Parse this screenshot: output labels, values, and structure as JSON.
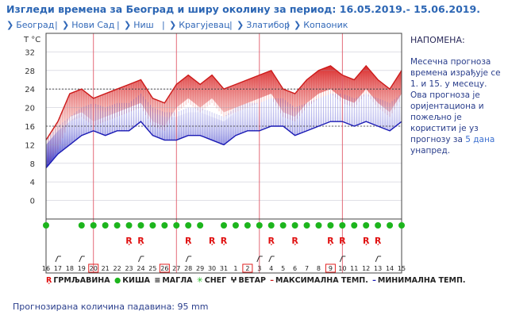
{
  "title": "Изгледи времена за Београд и ширу околину за период: 16.05.2019.- 15.06.2019.",
  "cities": [
    "Београд",
    "Нови Сад",
    "Ниш",
    "Крагујевац",
    "Златибор",
    "Копаоник"
  ],
  "note": {
    "title": "НАПОМЕНА:",
    "text_before": "Месечна прогноза времена израђује се 1. и 15. у месецу. Ова прогноза је оријентациона и пожељно је користити је уз прогнозу за ",
    "days": "5 дана",
    "text_after": " унапред."
  },
  "legend": {
    "storm": "ГРМЉАВИНА",
    "rain": "КИША",
    "fog": "МАГЛА",
    "snow": "СНЕГ",
    "wind": "ВЕТАР",
    "max": "МАКСИМАЛНА ТЕМП.",
    "min": "МИНИМАЛНА ТЕМП."
  },
  "precip": {
    "label": "Прогнозирана количина падавина:",
    "value": "95",
    "unit": "mm"
  },
  "colors": {
    "max_line": "#cc1a1a",
    "min_line": "#1a1ab4",
    "rain": "#1db51d",
    "storm": "#e01010",
    "title": "#2c66b4"
  },
  "chart_data": {
    "type": "line",
    "ylabel": "T °C",
    "ylim": [
      -4,
      36
    ],
    "yticks": [
      0,
      4,
      8,
      12,
      16,
      20,
      24,
      28,
      32
    ],
    "dashed_lines": [
      24,
      16
    ],
    "day_labels": [
      "16",
      "17",
      "18",
      "19",
      "20",
      "21",
      "22",
      "23",
      "24",
      "25",
      "26",
      "27",
      "28",
      "29",
      "30",
      "31",
      "1",
      "2",
      "3",
      "4",
      "5",
      "6",
      "7",
      "8",
      "9",
      "10",
      "11",
      "12",
      "13",
      "14",
      "15"
    ],
    "boxed_days": [
      4,
      10,
      17,
      24
    ],
    "week_lines": [
      4,
      11,
      18,
      25
    ],
    "series": [
      {
        "values": [
          13,
          17,
          23,
          24,
          22,
          23,
          24,
          25,
          26,
          22,
          21,
          25,
          27,
          25,
          27,
          24,
          25,
          26,
          27,
          28,
          24,
          23,
          26,
          28,
          29,
          27,
          26,
          29,
          26,
          24,
          28
        ]
      },
      {
        "values": [
          7,
          10,
          12,
          14,
          15,
          14,
          15,
          15,
          17,
          14,
          13,
          13,
          14,
          14,
          13,
          12,
          14,
          15,
          15,
          16,
          16,
          14,
          15,
          16,
          17,
          17,
          16,
          17,
          16,
          15,
          17
        ]
      }
    ],
    "rain_days": [
      0,
      3,
      4,
      5,
      6,
      7,
      8,
      9,
      10,
      11,
      12,
      13,
      15,
      16,
      17,
      18,
      19,
      20,
      21,
      22,
      23,
      24,
      25,
      26,
      27,
      28,
      29,
      30
    ],
    "storm_days": [
      7,
      8,
      12,
      14,
      15,
      19,
      21,
      24,
      25,
      27,
      28
    ],
    "wind_days": [
      1,
      3,
      8,
      12,
      18,
      19,
      25,
      28
    ]
  }
}
